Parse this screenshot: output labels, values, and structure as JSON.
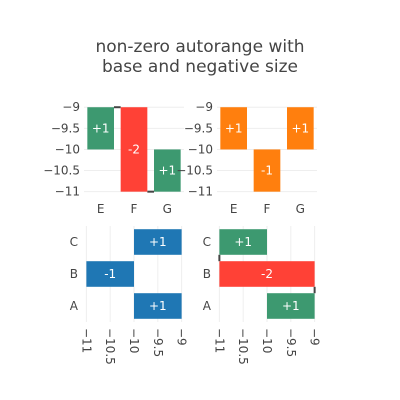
{
  "title_lines": [
    "non-zero autorange with",
    "base and negative size"
  ],
  "colors": {
    "increasing": "#3d9970",
    "decreasing": "#ff4136",
    "total": "#1f77b4",
    "orange": "#ff7f0e",
    "connector": "#444444"
  },
  "chart_data": [
    {
      "type": "bar",
      "orientation": "vertical",
      "style": "waterfall",
      "categories": [
        "E",
        "F",
        "G"
      ],
      "values": [
        1,
        -2,
        1
      ],
      "labels": [
        "+1",
        "-2",
        "+1"
      ],
      "base": [
        -10,
        -9,
        -11
      ],
      "fill": [
        "increasing",
        "decreasing",
        "increasing"
      ],
      "connectors": true,
      "ylim": [
        -11.15,
        -8.9
      ],
      "yticks": [
        -9,
        -9.5,
        -10,
        -10.5,
        -11
      ],
      "ytick_labels": [
        "−9",
        "−9.5",
        "−10",
        "−10.5",
        "−11"
      ],
      "y_reversed": true
    },
    {
      "type": "bar",
      "orientation": "vertical",
      "style": "bar",
      "categories": [
        "E",
        "F",
        "G"
      ],
      "values": [
        1,
        -1,
        1
      ],
      "labels": [
        "+1",
        "-1",
        "+1"
      ],
      "base": [
        -10,
        -10,
        -10
      ],
      "fill": [
        "orange",
        "orange",
        "orange"
      ],
      "connectors": false,
      "ylim": [
        -11.15,
        -8.9
      ],
      "yticks": [
        -9,
        -9.5,
        -10,
        -10.5,
        -11
      ],
      "ytick_labels": [
        "−9",
        "−9.5",
        "−10",
        "−10.5",
        "−11"
      ],
      "y_reversed": true
    },
    {
      "type": "bar",
      "orientation": "horizontal",
      "style": "bar",
      "categories": [
        "A",
        "B",
        "C"
      ],
      "values": [
        1,
        -1,
        1
      ],
      "labels": [
        "+1",
        "-1",
        "+1"
      ],
      "base": [
        -10,
        -10,
        -10
      ],
      "fill": [
        "total",
        "total",
        "total"
      ],
      "connectors": false,
      "xlim": [
        -11.05,
        -8.95
      ],
      "xticks": [
        -11,
        -10.5,
        -10,
        -9.5,
        -9
      ],
      "xtick_labels": [
        "−11",
        "−10.5",
        "−10",
        "−9.5",
        "−9"
      ],
      "x_reversed": true
    },
    {
      "type": "bar",
      "orientation": "horizontal",
      "style": "waterfall",
      "categories": [
        "A",
        "B",
        "C"
      ],
      "values": [
        1,
        -2,
        1
      ],
      "labels": [
        "+1",
        "-2",
        "+1"
      ],
      "base": [
        -10,
        -9,
        -11
      ],
      "fill": [
        "increasing",
        "decreasing",
        "increasing"
      ],
      "connectors": true,
      "xlim": [
        -11.05,
        -8.95
      ],
      "xticks": [
        -11,
        -10.5,
        -10,
        -9.5,
        -9
      ],
      "xtick_labels": [
        "−11",
        "−10.5",
        "−10",
        "−9.5",
        "−9"
      ],
      "x_reversed": true
    }
  ]
}
